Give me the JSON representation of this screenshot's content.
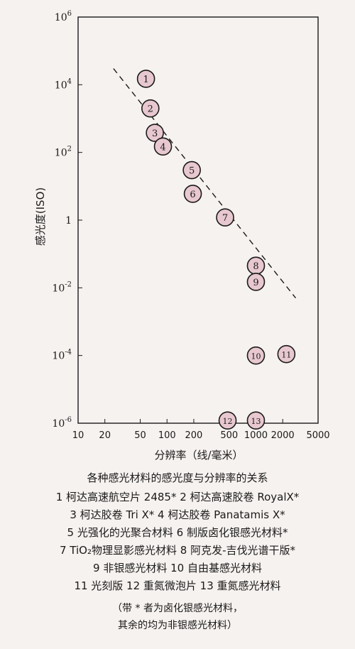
{
  "chart_data": {
    "type": "scatter",
    "xlabel": "分辨率（线/毫米）",
    "ylabel": "感光度(ISO)",
    "x_scale": "log",
    "y_scale": "log",
    "xlim": [
      10,
      5000
    ],
    "ylim": [
      1e-06,
      1000000
    ],
    "x_ticks": [
      "10",
      "20",
      "50",
      "100",
      "200",
      "500",
      "1000",
      "2000",
      "5000"
    ],
    "x_tick_values": [
      10,
      20,
      50,
      100,
      200,
      500,
      1000,
      2000,
      5000
    ],
    "y_ticks": [
      {
        "value": 1000000,
        "base": "10",
        "exp": "6"
      },
      {
        "value": 10000,
        "base": "10",
        "exp": "4"
      },
      {
        "value": 100,
        "base": "10",
        "exp": "2"
      },
      {
        "value": 1,
        "base": "1",
        "exp": ""
      },
      {
        "value": 0.01,
        "base": "10",
        "exp": "-2"
      },
      {
        "value": 0.0001,
        "base": "10",
        "exp": "-4"
      },
      {
        "value": 1e-06,
        "base": "10",
        "exp": "-6"
      }
    ],
    "points": [
      {
        "label": "1",
        "x": 58,
        "y": 15000
      },
      {
        "label": "2",
        "x": 65,
        "y": 2000
      },
      {
        "label": "3",
        "x": 73,
        "y": 380
      },
      {
        "label": "4",
        "x": 90,
        "y": 150
      },
      {
        "label": "5",
        "x": 190,
        "y": 30
      },
      {
        "label": "6",
        "x": 195,
        "y": 6
      },
      {
        "label": "7",
        "x": 450,
        "y": 1.2
      },
      {
        "label": "8",
        "x": 1000,
        "y": 0.045
      },
      {
        "label": "9",
        "x": 1000,
        "y": 0.015
      },
      {
        "label": "10",
        "x": 1000,
        "y": 0.0001
      },
      {
        "label": "11",
        "x": 2200,
        "y": 0.00011
      },
      {
        "label": "12",
        "x": 480,
        "y": 1.2e-06
      },
      {
        "label": "13",
        "x": 1000,
        "y": 1.2e-06
      }
    ],
    "trend_line": {
      "style": "dashed",
      "x": [
        25,
        2800
      ],
      "y": [
        30000,
        0.005
      ]
    }
  },
  "caption": {
    "title": "各种感光材料的感光度与分辨率的关系",
    "lines": [
      "1 柯达高速航空片 2485*  2 柯达高速胶卷 RoyalX*",
      "3 柯达胶卷 Tri X*  4 柯达胶卷 Panatamis X*",
      "5 光强化的光聚合材料  6 制版卤化银感光材料*",
      "7 TiO₂物理显影感光材料  8 阿克发-吉伐光谱干版*",
      "9 非银感光材料  10 自由基感光材料",
      "11 光刻版  12 重氮微泡片  13 重氮感光材料"
    ],
    "note_line1": "（带 * 者为卤化银感光材料，",
    "note_line2": "其余的均为非银感光材料）"
  },
  "colors": {
    "marker_fill": "#e8c8d0",
    "marker_stroke": "#1a1a1a",
    "axis": "#1a1a1a",
    "background": "#f6f2ef"
  }
}
